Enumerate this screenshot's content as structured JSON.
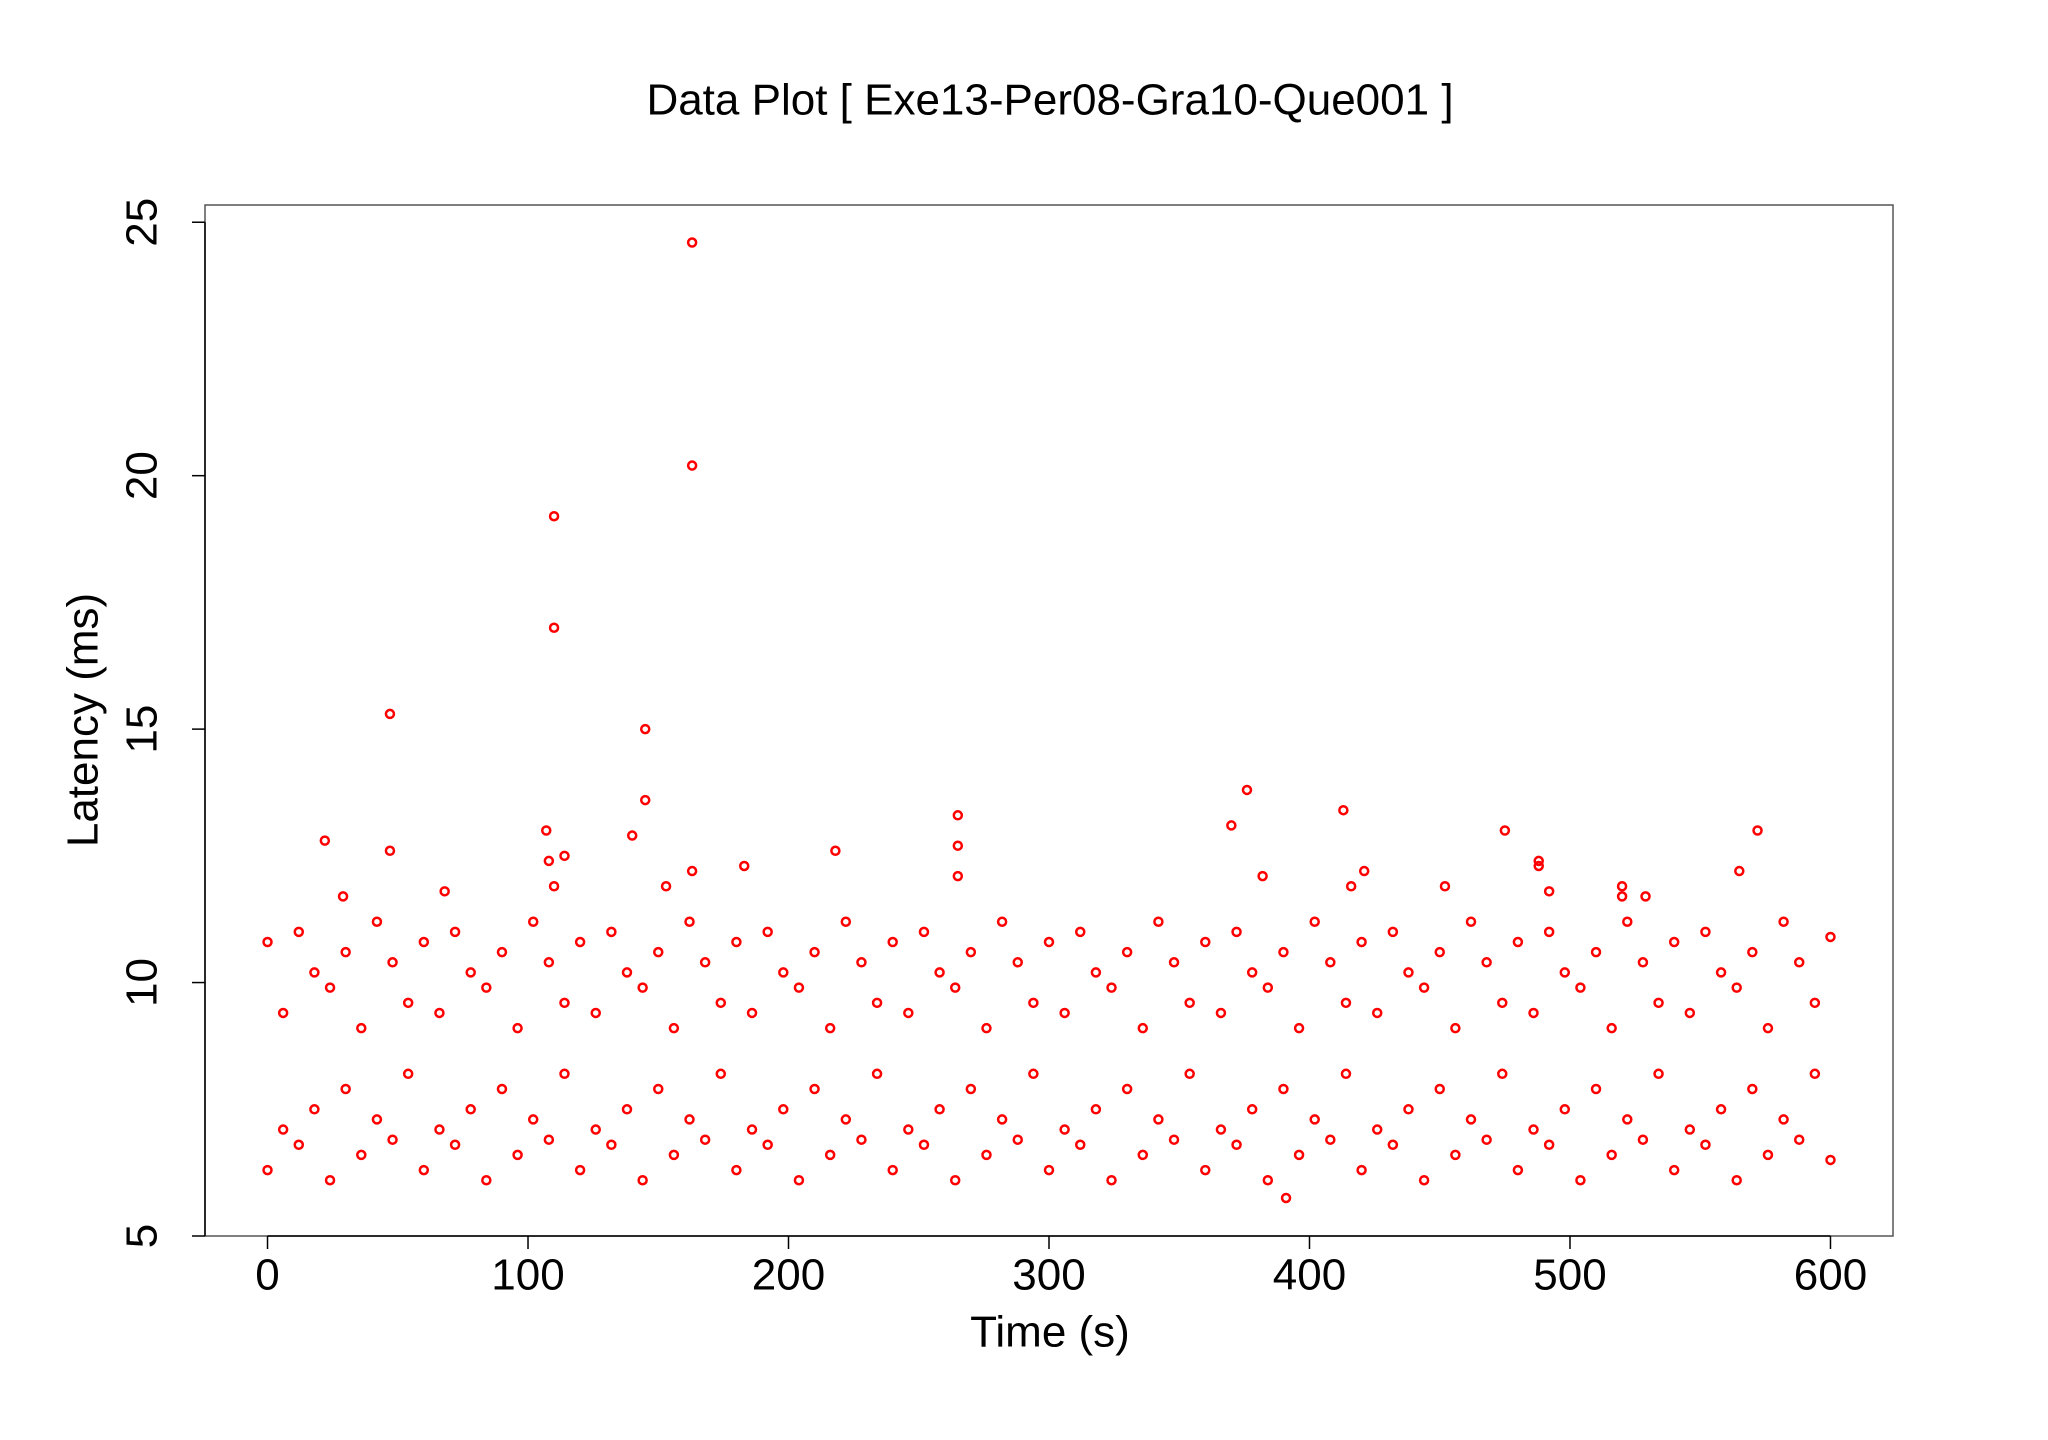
{
  "chart_data": {
    "type": "scatter",
    "title": "Data Plot [ Exe13-Per08-Gra10-Que001 ]",
    "x_label": "Time (s)",
    "y_label": "Latency (ms)",
    "color": "#ff0000",
    "xlim": [
      -24,
      624
    ],
    "ylim": [
      5,
      25.34
    ],
    "xticks": [
      0,
      100,
      200,
      300,
      400,
      500,
      600
    ],
    "yticks": [
      5,
      10,
      15,
      20,
      25
    ],
    "x": [
      22,
      47,
      47,
      107,
      108,
      110,
      110,
      110,
      114,
      140,
      145,
      145,
      153,
      163,
      163,
      163,
      183,
      218,
      265,
      265,
      265,
      370,
      376,
      382,
      413,
      416,
      421,
      452,
      475,
      488,
      488,
      492,
      520,
      520,
      529,
      565,
      572,
      391,
      29,
      68,
      0,
      0,
      6,
      6,
      12,
      12,
      18,
      18,
      24,
      24,
      30,
      30,
      36,
      36,
      42,
      42,
      48,
      48,
      54,
      54,
      60,
      60,
      66,
      66,
      72,
      72,
      78,
      78,
      84,
      84,
      90,
      90,
      96,
      96,
      102,
      102,
      108,
      108,
      114,
      114,
      120,
      120,
      126,
      126,
      132,
      132,
      138,
      138,
      144,
      144,
      150,
      150,
      156,
      156,
      162,
      162,
      168,
      168,
      174,
      174,
      180,
      180,
      186,
      186,
      192,
      192,
      198,
      198,
      204,
      204,
      210,
      210,
      216,
      216,
      222,
      222,
      228,
      228,
      234,
      234,
      240,
      240,
      246,
      246,
      252,
      252,
      258,
      258,
      264,
      264,
      270,
      270,
      276,
      276,
      282,
      282,
      288,
      288,
      294,
      294,
      300,
      300,
      306,
      306,
      312,
      312,
      318,
      318,
      324,
      324,
      330,
      330,
      336,
      336,
      342,
      342,
      348,
      348,
      354,
      354,
      360,
      360,
      366,
      366,
      372,
      372,
      378,
      378,
      384,
      384,
      390,
      390,
      396,
      396,
      402,
      402,
      408,
      408,
      414,
      414,
      420,
      420,
      426,
      426,
      432,
      432,
      438,
      438,
      444,
      444,
      450,
      450,
      456,
      456,
      462,
      462,
      468,
      468,
      474,
      474,
      480,
      480,
      486,
      486,
      492,
      492,
      498,
      498,
      504,
      504,
      510,
      510,
      516,
      516,
      522,
      522,
      528,
      528,
      534,
      534,
      540,
      540,
      546,
      546,
      552,
      552,
      558,
      558,
      564,
      564,
      570,
      570,
      576,
      576,
      582,
      582,
      588,
      588,
      594,
      594,
      600,
      600
    ],
    "values": [
      12.8,
      15.3,
      12.6,
      13.0,
      12.4,
      19.2,
      17.0,
      11.9,
      12.5,
      12.9,
      15.0,
      13.6,
      11.9,
      24.6,
      20.2,
      12.2,
      12.3,
      12.6,
      13.3,
      12.7,
      12.1,
      13.1,
      13.8,
      12.1,
      13.4,
      11.9,
      12.2,
      11.9,
      13.0,
      12.4,
      12.3,
      11.8,
      11.9,
      11.7,
      11.7,
      12.2,
      13.0,
      5.75,
      11.7,
      11.8,
      6.3,
      10.8,
      7.1,
      9.4,
      6.8,
      11.0,
      7.5,
      10.2,
      6.1,
      9.9,
      7.9,
      10.6,
      6.6,
      9.1,
      7.3,
      11.2,
      6.9,
      10.4,
      8.2,
      9.6,
      6.3,
      10.8,
      7.1,
      9.4,
      6.8,
      11.0,
      7.5,
      10.2,
      6.1,
      9.9,
      7.9,
      10.6,
      6.6,
      9.1,
      7.3,
      11.2,
      6.9,
      10.4,
      8.2,
      9.6,
      6.3,
      10.8,
      7.1,
      9.4,
      6.8,
      11.0,
      7.5,
      10.2,
      6.1,
      9.9,
      7.9,
      10.6,
      6.6,
      9.1,
      7.3,
      11.2,
      6.9,
      10.4,
      8.2,
      9.6,
      6.3,
      10.8,
      7.1,
      9.4,
      6.8,
      11.0,
      7.5,
      10.2,
      6.1,
      9.9,
      7.9,
      10.6,
      6.6,
      9.1,
      7.3,
      11.2,
      6.9,
      10.4,
      8.2,
      9.6,
      6.3,
      10.8,
      7.1,
      9.4,
      6.8,
      11.0,
      7.5,
      10.2,
      6.1,
      9.9,
      7.9,
      10.6,
      6.6,
      9.1,
      7.3,
      11.2,
      6.9,
      10.4,
      8.2,
      9.6,
      6.3,
      10.8,
      7.1,
      9.4,
      6.8,
      11.0,
      7.5,
      10.2,
      6.1,
      9.9,
      7.9,
      10.6,
      6.6,
      9.1,
      7.3,
      11.2,
      6.9,
      10.4,
      8.2,
      9.6,
      6.3,
      10.8,
      7.1,
      9.4,
      6.8,
      11.0,
      7.5,
      10.2,
      6.1,
      9.9,
      7.9,
      10.6,
      6.6,
      9.1,
      7.3,
      11.2,
      6.9,
      10.4,
      8.2,
      9.6,
      6.3,
      10.8,
      7.1,
      9.4,
      6.8,
      11.0,
      7.5,
      10.2,
      6.1,
      9.9,
      7.9,
      10.6,
      6.6,
      9.1,
      7.3,
      11.2,
      6.9,
      10.4,
      8.2,
      9.6,
      6.3,
      10.8,
      7.1,
      9.4,
      6.8,
      11.0,
      7.5,
      10.2,
      6.1,
      9.9,
      7.9,
      10.6,
      6.6,
      9.1,
      7.3,
      11.2,
      6.9,
      10.4,
      8.2,
      9.6,
      6.3,
      10.8,
      7.1,
      9.4,
      6.8,
      11.0,
      7.5,
      10.2,
      6.1,
      9.9,
      7.9,
      10.6,
      6.6,
      9.1,
      7.3,
      11.2,
      6.9,
      10.4,
      8.2,
      9.6,
      6.5,
      10.9
    ]
  }
}
